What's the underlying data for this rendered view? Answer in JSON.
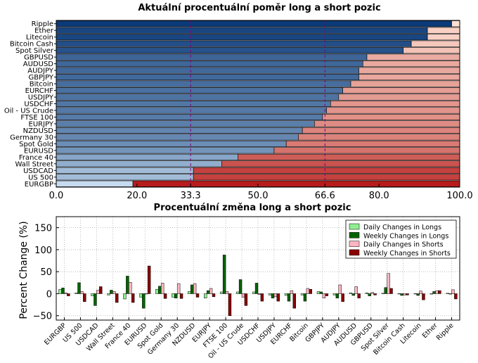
{
  "chart_data": [
    {
      "type": "bar",
      "orientation": "horizontal",
      "stacked": true,
      "title": "Aktuální procentuální poměr long a short pozic",
      "categories": [
        "Ripple",
        "Ether",
        "Litecoin",
        "Bitcoin Cash",
        "Spot Silver",
        "GBPUSD",
        "AUDUSD",
        "AUDJPY",
        "GBPJPY",
        "Bitcoin",
        "EURCHF",
        "USDJPY",
        "USDCHF",
        "Oil - US Crude",
        "FTSE 100",
        "EURJPY",
        "NZDUSD",
        "Germany 30",
        "Spot Gold",
        "EURUSD",
        "France 40",
        "Wall Street",
        "USDCAD",
        "US 500",
        "EURGBP"
      ],
      "long_percent": [
        98,
        92,
        92,
        88,
        86,
        77,
        76,
        75,
        75,
        73,
        71,
        70,
        68,
        67,
        66,
        64,
        61,
        60,
        57,
        54,
        45,
        41,
        34,
        34,
        19
      ],
      "xlim": [
        0,
        100
      ],
      "xticks": [
        "0.0",
        "20.0",
        "33.3",
        "50.0",
        "66.6",
        "80.0",
        "100.0"
      ],
      "reference_lines": [
        33.3,
        66.6
      ],
      "colors": {
        "long_dark": "#0b3a78",
        "long_light": "#c6dbef",
        "short_light": "#fde0d2",
        "short_dark": "#b71c1c",
        "reference": "#800080"
      }
    },
    {
      "type": "bar",
      "title": "Procentuální změna long a short pozic",
      "ylabel": "Percent Change (%)",
      "ylim": [
        -60,
        175
      ],
      "yticks": [
        "−50",
        "0",
        "50",
        "100",
        "150"
      ],
      "grid": true,
      "legend_position": "top-right",
      "categories": [
        "EURGBP",
        "US 500",
        "USDCAD",
        "Wall Street",
        "France 40",
        "EURUSD",
        "Spot Gold",
        "Germany 30",
        "NZDUSD",
        "EURJPY",
        "FTSE 100",
        "Oil - US Crude",
        "USDCHF",
        "USDJPY",
        "EURCHF",
        "Bitcoin",
        "GBPJPY",
        "AUDJPY",
        "AUDUSD",
        "GBPUSD",
        "Spot Silver",
        "Bitcoin Cash",
        "Litecoin",
        "Ether",
        "Ripple"
      ],
      "series": [
        {
          "name": "Daily Changes in Longs",
          "color": "#90ee90",
          "values": [
            10,
            2,
            -5,
            -3,
            -12,
            -8,
            10,
            -8,
            5,
            -10,
            4,
            4,
            4,
            -3,
            -4,
            -3,
            5,
            -3,
            2,
            2,
            1,
            0,
            0,
            -1,
            1
          ]
        },
        {
          "name": "Weekly Changes in Longs",
          "color": "#006400",
          "values": [
            13,
            25,
            -27,
            8,
            40,
            -33,
            17,
            -10,
            20,
            7,
            88,
            32,
            24,
            -10,
            -17,
            -17,
            4,
            -10,
            -4,
            -5,
            14,
            -4,
            -4,
            5,
            -1
          ]
        },
        {
          "name": "Daily Changes in Shorts",
          "color": "#ffb6c1",
          "values": [
            2,
            5,
            8,
            5,
            26,
            0,
            24,
            23,
            23,
            12,
            5,
            -8,
            -2,
            -7,
            7,
            12,
            -10,
            20,
            16,
            3,
            46,
            -3,
            6,
            7,
            9
          ]
        },
        {
          "name": "Weekly Changes in Shorts",
          "color": "#8b0000",
          "values": [
            -5,
            -18,
            16,
            -20,
            -20,
            63,
            -11,
            -11,
            -8,
            -7,
            -50,
            -27,
            -17,
            -17,
            -33,
            10,
            -5,
            -18,
            -10,
            -3,
            12,
            -3,
            -14,
            7,
            -12
          ]
        }
      ]
    }
  ]
}
